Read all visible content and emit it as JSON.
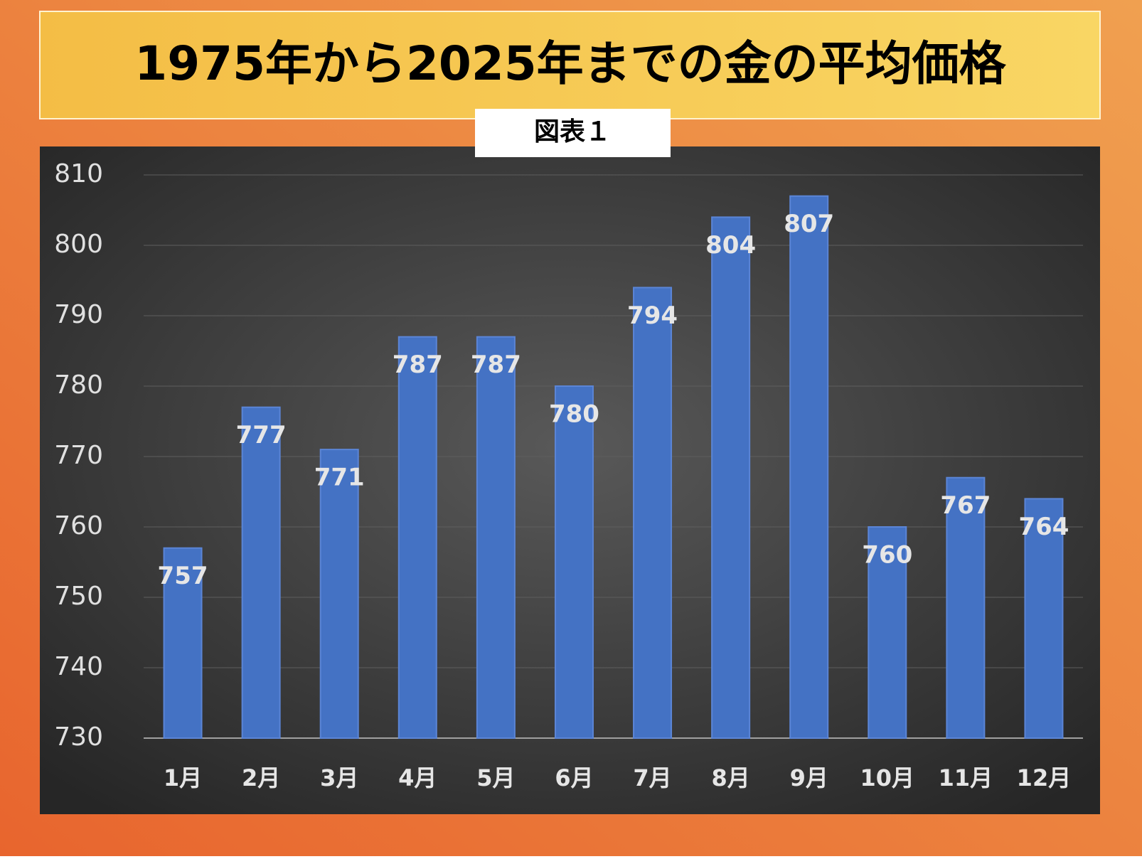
{
  "chart_data": {
    "type": "bar",
    "title": "1975年から2025年までの金の平均価格",
    "subtitle": "図表１",
    "categories": [
      "1月",
      "2月",
      "3月",
      "4月",
      "5月",
      "6月",
      "7月",
      "8月",
      "9月",
      "10月",
      "11月",
      "12月"
    ],
    "values": [
      757,
      777,
      771,
      787,
      787,
      780,
      794,
      804,
      807,
      760,
      767,
      764
    ],
    "color": "#4472c4",
    "ylim": [
      730,
      810
    ],
    "yticks": [
      730,
      740,
      750,
      760,
      770,
      780,
      790,
      800,
      810
    ],
    "grid": true
  }
}
